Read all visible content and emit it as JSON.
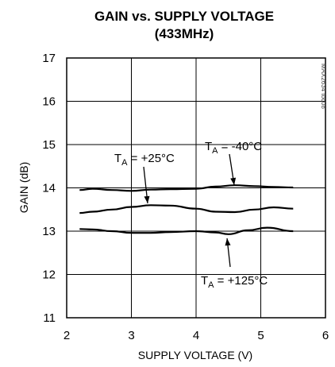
{
  "chart_data": {
    "type": "line",
    "title": "GAIN vs. SUPPLY VOLTAGE",
    "subtitle": "(433MHz)",
    "xlabel": "SUPPLY VOLTAGE (V)",
    "ylabel": "GAIN (dB)",
    "xlim": [
      2,
      6
    ],
    "ylim": [
      11,
      17
    ],
    "xticks": [
      "2",
      "3",
      "4",
      "5",
      "6"
    ],
    "yticks": [
      "11",
      "12",
      "13",
      "14",
      "15",
      "16",
      "17"
    ],
    "grid": true,
    "series": [
      {
        "name": "T_A = -40°C",
        "x": [
          2.2,
          2.4,
          2.7,
          3.0,
          3.3,
          3.6,
          4.0,
          4.3,
          4.6,
          4.9,
          5.2,
          5.5
        ],
        "y": [
          13.95,
          13.98,
          13.95,
          13.93,
          13.96,
          13.97,
          13.98,
          14.03,
          14.06,
          14.04,
          14.02,
          14.01
        ]
      },
      {
        "name": "T_A = +25°C",
        "x": [
          2.2,
          2.4,
          2.7,
          3.0,
          3.3,
          3.6,
          4.0,
          4.3,
          4.6,
          4.9,
          5.2,
          5.5
        ],
        "y": [
          13.42,
          13.45,
          13.5,
          13.56,
          13.6,
          13.59,
          13.52,
          13.45,
          13.44,
          13.5,
          13.55,
          13.52
        ]
      },
      {
        "name": "T_A = +125°C",
        "x": [
          2.2,
          2.4,
          2.7,
          3.0,
          3.3,
          3.6,
          4.0,
          4.3,
          4.5,
          4.8,
          5.1,
          5.5
        ],
        "y": [
          13.05,
          13.04,
          13.0,
          12.96,
          12.96,
          12.98,
          13.0,
          12.97,
          12.93,
          13.02,
          13.08,
          13.0
        ]
      }
    ],
    "annotations": [
      {
        "main": "T",
        "sub": "A",
        "rest": " = -40°C",
        "series": 0
      },
      {
        "main": "T",
        "sub": "A",
        "rest": " = +25°C",
        "series": 1
      },
      {
        "main": "T",
        "sub": "A",
        "rest": " = +125°C",
        "series": 2
      }
    ],
    "side_label": "MAX2634 toc08"
  }
}
